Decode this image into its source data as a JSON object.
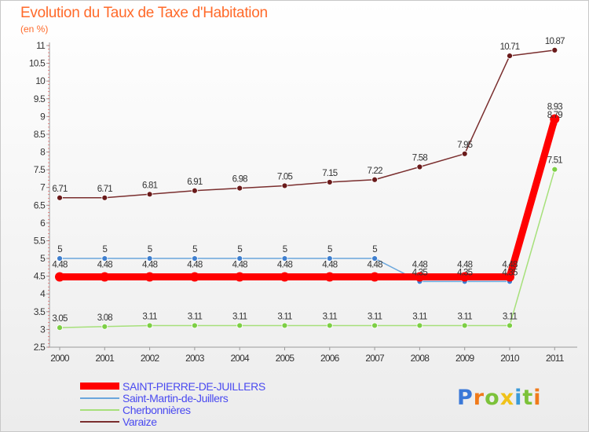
{
  "header": {
    "title": "Evolution du Taux de Taxe d'Habitation",
    "subtitle": "(en %)"
  },
  "chart_data": {
    "type": "line",
    "title": "Evolution du Taux de Taxe d'Habitation",
    "ylabel": "(en %)",
    "xlabel": "",
    "x": [
      "2000",
      "2001",
      "2002",
      "2003",
      "2004",
      "2005",
      "2006",
      "2007",
      "2008",
      "2009",
      "2010",
      "2011"
    ],
    "ylim": [
      2.5,
      11
    ],
    "yticks": [
      "2.5",
      "3",
      "3.5",
      "4",
      "4.5",
      "5",
      "5.5",
      "6",
      "6.5",
      "7",
      "7.5",
      "8",
      "8.5",
      "9",
      "9.5",
      "10",
      "10.5",
      "11"
    ],
    "grid": false,
    "legend": "bottom-left",
    "series": [
      {
        "name": "SAINT-PIERRE-DE-JUILLERS",
        "color": "#ff0000",
        "marker": "#ff0000",
        "emphasis": true,
        "values": [
          4.48,
          4.48,
          4.48,
          4.48,
          4.48,
          4.48,
          4.48,
          4.48,
          4.48,
          4.48,
          4.48,
          8.93
        ],
        "labels": [
          "4.48",
          "4.48",
          "4.48",
          "4.48",
          "4.48",
          "4.48",
          "4.48",
          "4.48",
          "4.48",
          "4.48",
          "4.48",
          "8.93"
        ]
      },
      {
        "name": "Saint-Martin-de-Juillers",
        "color": "#6aa6dc",
        "marker": "#3f7fcf",
        "values": [
          5,
          5,
          5,
          5,
          5,
          5,
          5,
          5,
          4.35,
          4.35,
          4.35,
          8.79
        ],
        "labels": [
          "5",
          "5",
          "5",
          "5",
          "5",
          "5",
          "5",
          "5",
          "4.35",
          "4.35",
          "4.35",
          "8.79"
        ]
      },
      {
        "name": "Cherbonnières",
        "color": "#a6e07a",
        "marker": "#7dcf45",
        "values": [
          3.05,
          3.08,
          3.11,
          3.11,
          3.11,
          3.11,
          3.11,
          3.11,
          3.11,
          3.11,
          3.11,
          7.51
        ],
        "labels": [
          "3.05",
          "3.08",
          "3.11",
          "3.11",
          "3.11",
          "3.11",
          "3.11",
          "3.11",
          "3.11",
          "3.11",
          "3.11",
          "7.51"
        ]
      },
      {
        "name": "Varaize",
        "color": "#7a2e2e",
        "marker": "#6a1a1a",
        "values": [
          6.71,
          6.71,
          6.81,
          6.91,
          6.98,
          7.05,
          7.15,
          7.22,
          7.58,
          7.95,
          10.71,
          10.87
        ],
        "labels": [
          "6.71",
          "6.71",
          "6.81",
          "6.91",
          "6.98",
          "7.05",
          "7.15",
          "7.22",
          "7.58",
          "7.95",
          "10.71",
          "10.87"
        ]
      }
    ]
  },
  "legend": {
    "items": [
      {
        "label": "SAINT-PIERRE-DE-JUILLERS",
        "color": "#ff0000"
      },
      {
        "label": "Saint-Martin-de-Juillers",
        "color": "#6aa6dc"
      },
      {
        "label": "Cherbonnières",
        "color": "#a6e07a"
      },
      {
        "label": "Varaize",
        "color": "#7a2e2e"
      }
    ]
  },
  "logo": {
    "letters": [
      {
        "ch": "P",
        "color": "#3a78d8"
      },
      {
        "ch": "r",
        "color": "#f07a1a"
      },
      {
        "ch": "o",
        "color": "#7cc23a"
      },
      {
        "ch": "x",
        "color": "#f0c21a"
      },
      {
        "ch": "i",
        "color": "#3a9ad8"
      },
      {
        "ch": "t",
        "color": "#7cc23a"
      },
      {
        "ch": "i",
        "color": "#f07a1a"
      }
    ]
  }
}
